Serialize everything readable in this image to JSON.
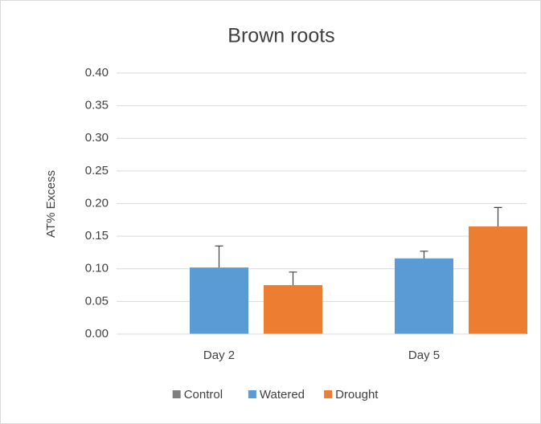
{
  "chart_data": {
    "type": "bar",
    "title": "Brown roots",
    "y_label": "AT% Excess",
    "categories": [
      "Day 2",
      "Day 5"
    ],
    "series": [
      {
        "name": "Control",
        "color": "#7f7f7f",
        "values": [
          0,
          0
        ]
      },
      {
        "name": "Watered",
        "color": "#5b9bd5",
        "values": [
          0.102,
          0.116
        ],
        "errors": [
          0.033,
          0.011
        ]
      },
      {
        "name": "Drought",
        "color": "#ed7d31",
        "values": [
          0.075,
          0.165
        ],
        "errors": [
          0.02,
          0.029
        ]
      }
    ],
    "ylim": [
      0,
      0.4
    ],
    "yticks": [
      {
        "value": 0,
        "label": "0.00"
      },
      {
        "value": 0.05,
        "label": "0.05"
      },
      {
        "value": 0.1,
        "label": "0.10"
      },
      {
        "value": 0.15,
        "label": "0.15"
      },
      {
        "value": 0.2,
        "label": "0.20"
      },
      {
        "value": 0.25,
        "label": "0.25"
      },
      {
        "value": 0.3,
        "label": "0.30"
      },
      {
        "value": 0.35,
        "label": "0.35"
      },
      {
        "value": 0.4,
        "label": "0.40"
      }
    ],
    "grid": true,
    "legend": "bottom"
  }
}
